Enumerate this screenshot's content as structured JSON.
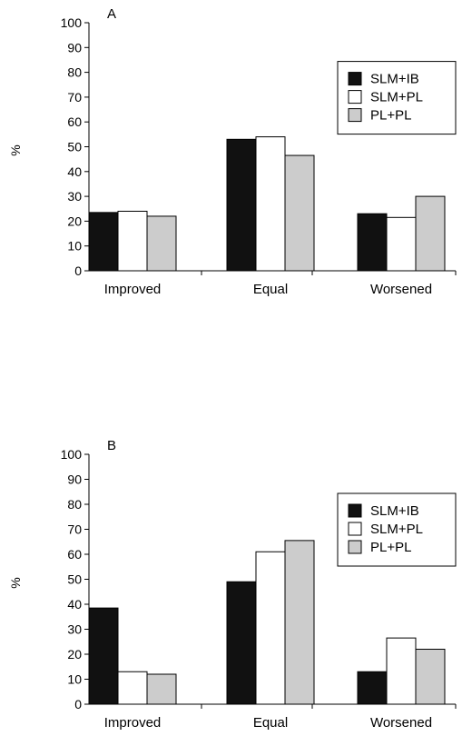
{
  "chart_data": [
    {
      "type": "bar",
      "panel_label": "A",
      "ylabel": "%",
      "ylim": [
        0,
        100
      ],
      "yticks": [
        0,
        10,
        20,
        30,
        40,
        50,
        60,
        70,
        80,
        90,
        100
      ],
      "categories": [
        "Improved",
        "Equal",
        "Worsened"
      ],
      "legend": "top-right",
      "series": [
        {
          "name": "SLM+IB",
          "color": "#111111",
          "values": [
            23.5,
            53,
            23
          ]
        },
        {
          "name": "SLM+PL",
          "color": "#ffffff",
          "values": [
            24,
            54,
            21.5
          ]
        },
        {
          "name": "PL+PL",
          "color": "#cccccc",
          "values": [
            22,
            46.5,
            30
          ]
        }
      ]
    },
    {
      "type": "bar",
      "panel_label": "B",
      "ylabel": "%",
      "ylim": [
        0,
        100
      ],
      "yticks": [
        0,
        10,
        20,
        30,
        40,
        50,
        60,
        70,
        80,
        90,
        100
      ],
      "categories": [
        "Improved",
        "Equal",
        "Worsened"
      ],
      "legend": "top-right",
      "series": [
        {
          "name": "SLM+IB",
          "color": "#111111",
          "values": [
            38.5,
            49,
            13
          ]
        },
        {
          "name": "SLM+PL",
          "color": "#ffffff",
          "values": [
            13,
            61,
            26.5
          ]
        },
        {
          "name": "PL+PL",
          "color": "#cccccc",
          "values": [
            12,
            65.5,
            22
          ]
        }
      ]
    }
  ]
}
